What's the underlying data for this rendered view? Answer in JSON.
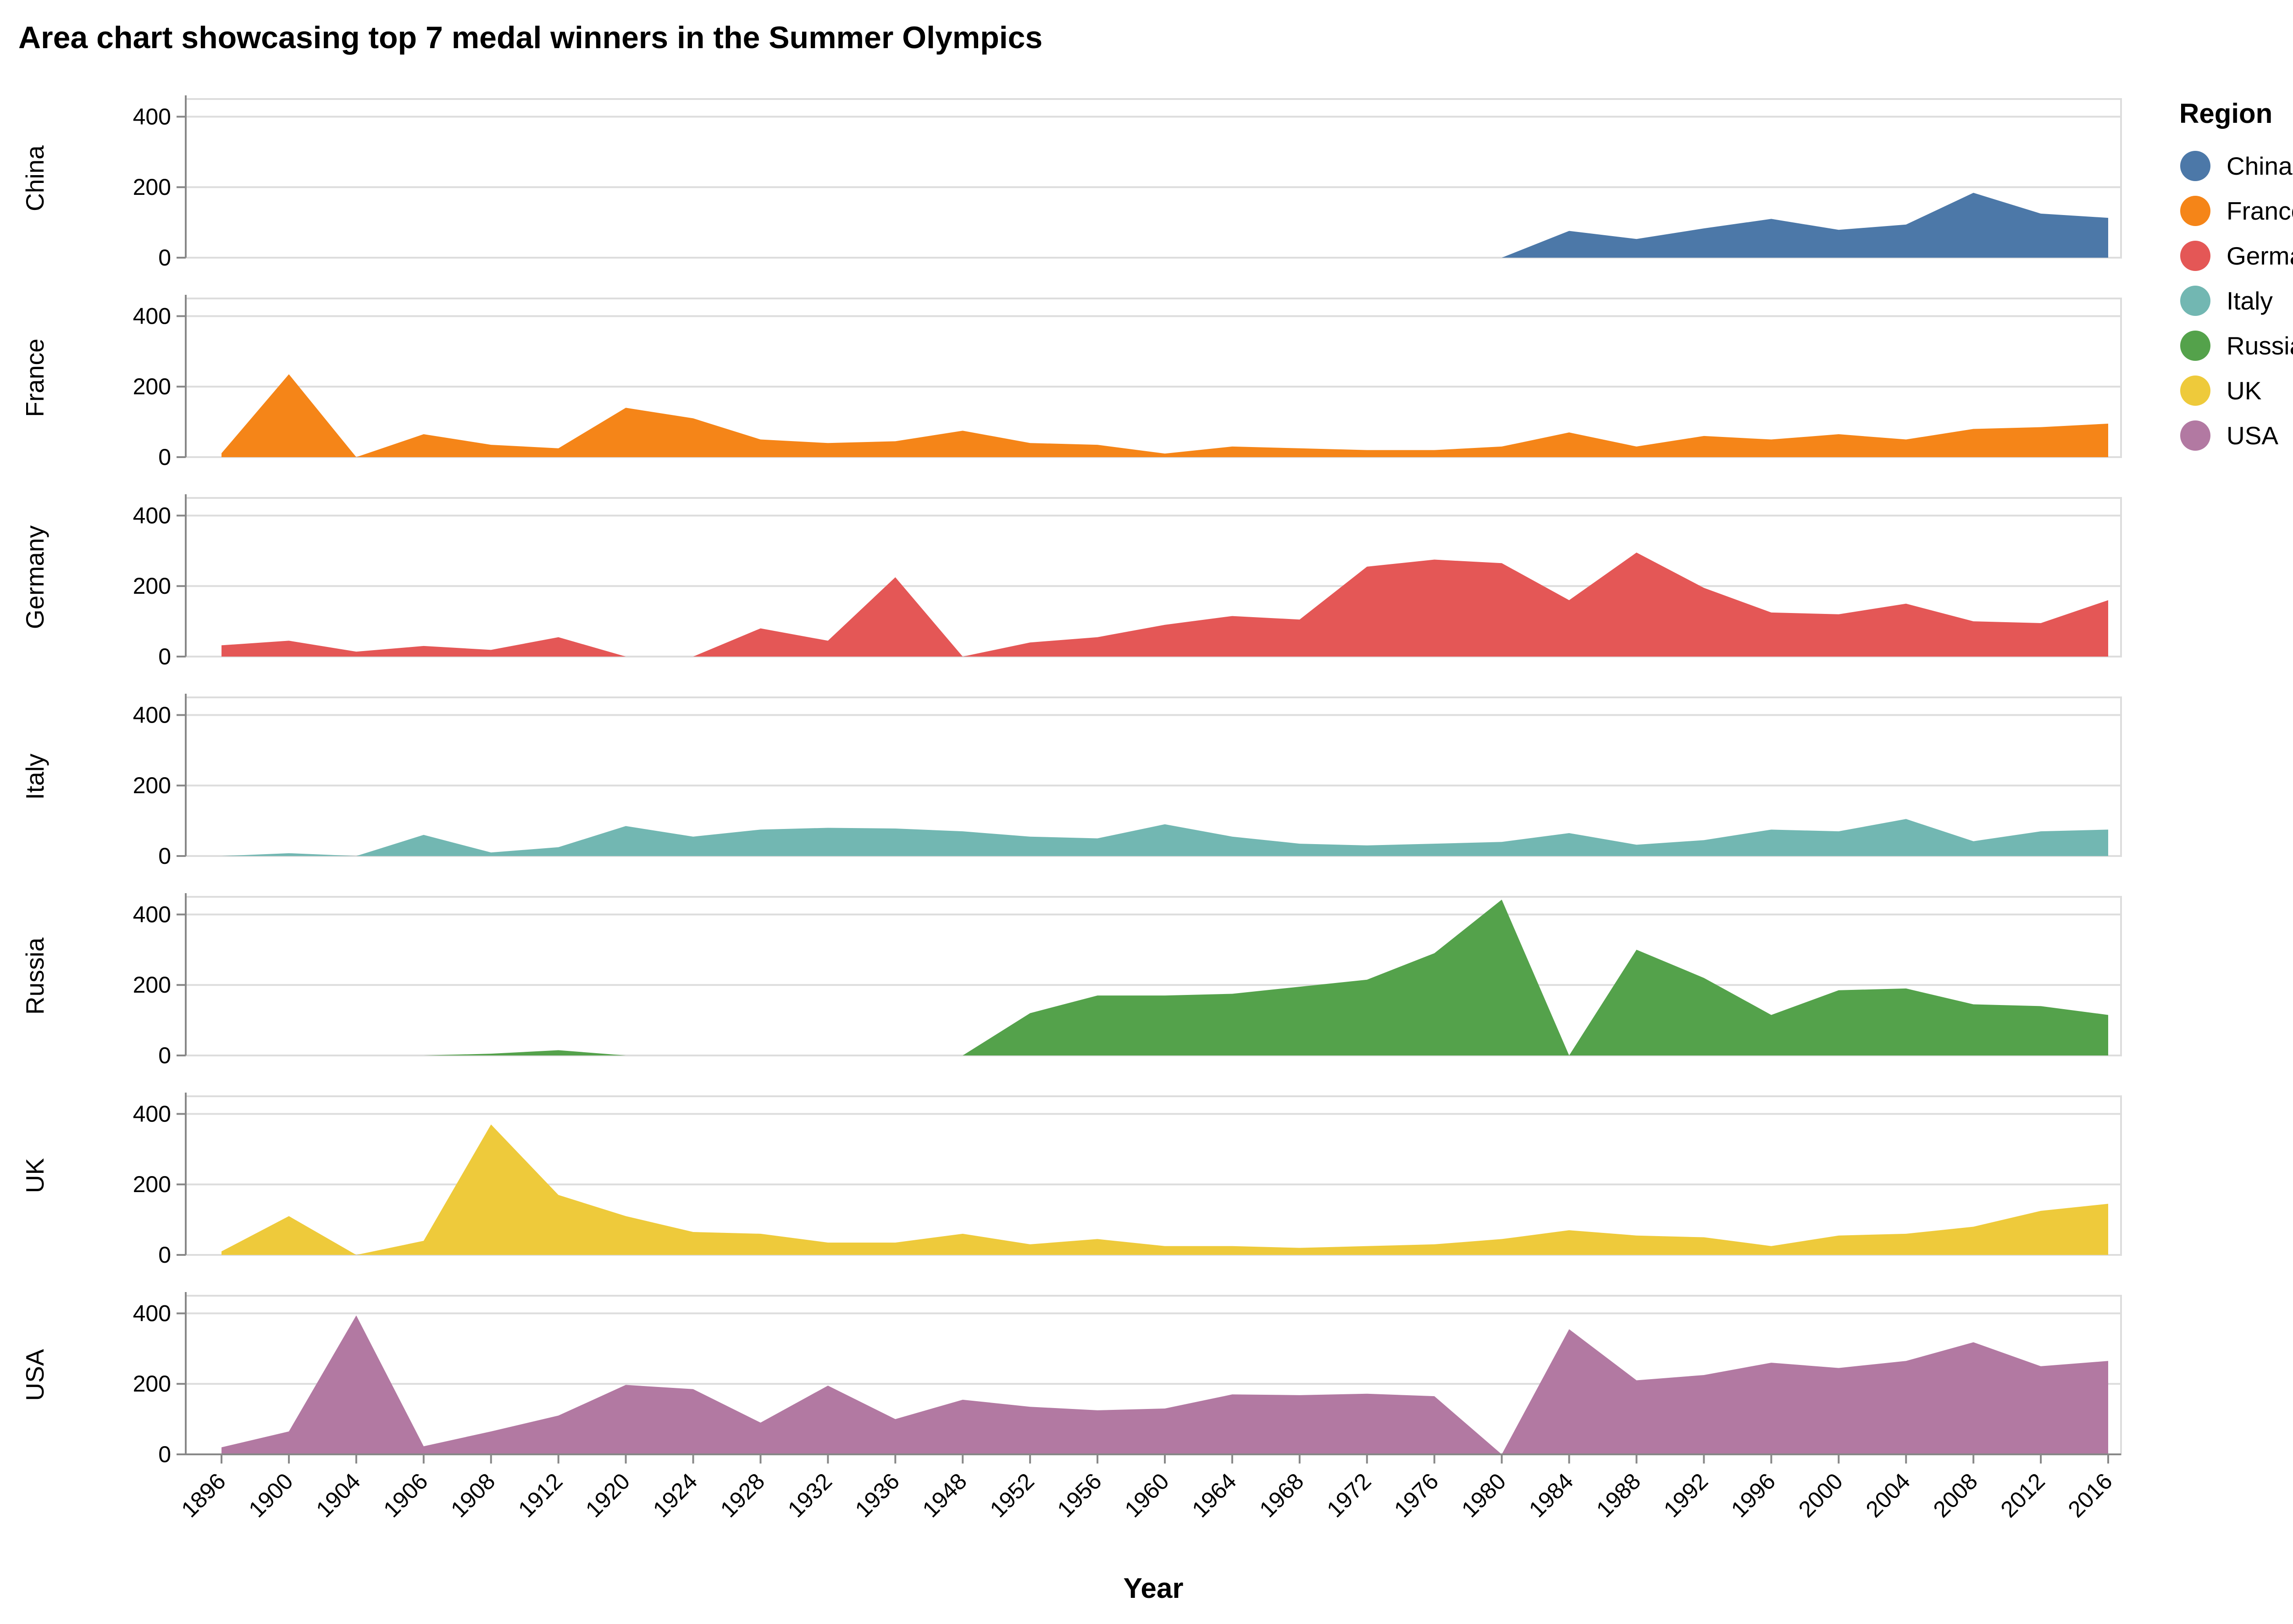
{
  "chart_data": {
    "type": "area",
    "title": "Area chart showcasing top 7 medal winners in the Summer Olympics",
    "xlabel": "Year",
    "legend_title": "Region",
    "legend_position": "right",
    "ylim": [
      0,
      450
    ],
    "yticks": [
      0,
      200,
      400
    ],
    "grid": true,
    "x": [
      "1896",
      "1900",
      "1904",
      "1906",
      "1908",
      "1912",
      "1920",
      "1924",
      "1928",
      "1932",
      "1936",
      "1948",
      "1952",
      "1956",
      "1960",
      "1964",
      "1968",
      "1972",
      "1976",
      "1980",
      "1984",
      "1988",
      "1992",
      "1996",
      "2000",
      "2004",
      "2008",
      "2012",
      "2016"
    ],
    "series": [
      {
        "name": "China",
        "color": "#4c78a8",
        "values": [
          null,
          null,
          null,
          null,
          null,
          null,
          null,
          null,
          null,
          null,
          null,
          null,
          null,
          null,
          null,
          null,
          null,
          null,
          null,
          0,
          76,
          53,
          83,
          110,
          79,
          94,
          184,
          125,
          113
        ]
      },
      {
        "name": "France",
        "color": "#f58518",
        "values": [
          11,
          235,
          0,
          65,
          35,
          25,
          140,
          110,
          50,
          40,
          45,
          75,
          40,
          35,
          10,
          30,
          25,
          20,
          20,
          30,
          70,
          30,
          60,
          50,
          65,
          50,
          80,
          85,
          95
        ]
      },
      {
        "name": "Germany",
        "color": "#e45756",
        "values": [
          32,
          45,
          14,
          30,
          19,
          55,
          0,
          0,
          80,
          45,
          225,
          0,
          40,
          55,
          90,
          115,
          105,
          255,
          275,
          265,
          160,
          295,
          195,
          125,
          120,
          150,
          100,
          95,
          160
        ]
      },
      {
        "name": "Italy",
        "color": "#72b7b2",
        "values": [
          0,
          8,
          0,
          60,
          10,
          25,
          85,
          55,
          75,
          80,
          78,
          70,
          55,
          50,
          90,
          55,
          35,
          30,
          35,
          40,
          65,
          32,
          45,
          75,
          70,
          105,
          42,
          70,
          75
        ]
      },
      {
        "name": "Russia",
        "color": "#54a24b",
        "values": [
          null,
          null,
          null,
          0,
          5,
          15,
          0,
          0,
          0,
          0,
          0,
          0,
          120,
          170,
          170,
          175,
          195,
          215,
          290,
          442,
          0,
          300,
          220,
          115,
          185,
          190,
          145,
          140,
          115
        ]
      },
      {
        "name": "UK",
        "color": "#eeca3b",
        "values": [
          10,
          110,
          0,
          40,
          370,
          170,
          110,
          65,
          60,
          35,
          35,
          60,
          30,
          45,
          25,
          25,
          20,
          25,
          30,
          45,
          70,
          55,
          50,
          25,
          55,
          60,
          80,
          125,
          145
        ]
      },
      {
        "name": "USA",
        "color": "#b279a2",
        "values": [
          20,
          65,
          394,
          23,
          65,
          110,
          197,
          185,
          90,
          195,
          100,
          155,
          135,
          125,
          130,
          170,
          168,
          172,
          165,
          0,
          355,
          210,
          225,
          260,
          245,
          265,
          318,
          250,
          265
        ]
      }
    ]
  }
}
